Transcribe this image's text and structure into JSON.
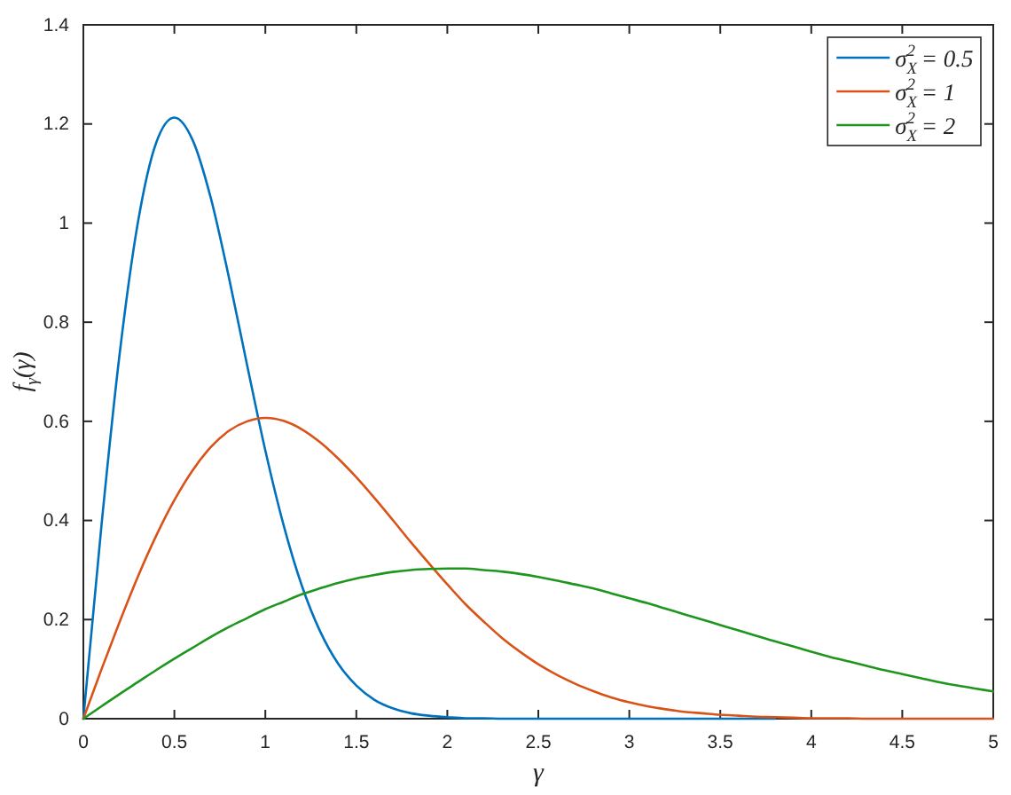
{
  "chart_data": {
    "type": "line",
    "xlabel": "γ",
    "ylabel": "f$_{γ}$(γ)",
    "xlim": [
      0,
      5
    ],
    "ylim": [
      0,
      1.4
    ],
    "xticks": [
      0,
      0.5,
      1,
      1.5,
      2,
      2.5,
      3,
      3.5,
      4,
      4.5,
      5
    ],
    "yticks": [
      0,
      0.2,
      0.4,
      0.6,
      0.8,
      1,
      1.2,
      1.4
    ],
    "legend": "top right",
    "x": [
      0,
      0.1,
      0.2,
      0.3,
      0.4,
      0.5,
      0.6,
      0.7,
      0.8,
      0.9,
      1,
      1.1,
      1.2,
      1.3,
      1.4,
      1.5,
      1.6,
      1.7,
      1.8,
      1.9,
      2,
      2.1,
      2.2,
      2.3,
      2.4,
      2.5,
      2.6,
      2.7,
      2.8,
      2.9,
      3,
      3.1,
      3.2,
      3.3,
      3.4,
      3.5,
      3.6,
      3.7,
      3.8,
      3.9,
      4,
      4.1,
      4.2,
      4.3,
      4.4,
      4.5,
      4.6,
      4.7,
      4.8,
      4.9,
      5
    ],
    "series": [
      {
        "name": "σ$_{X}$$^{2}$ = 0.5",
        "color": "#0072bd",
        "values": [
          0,
          0.392,
          0.738,
          1.002,
          1.162,
          1.213,
          1.168,
          1.051,
          0.89,
          0.713,
          0.541,
          0.391,
          0.269,
          0.177,
          0.111,
          0.067,
          0.038,
          0.021,
          0.011,
          0.006,
          0.003,
          0.001,
          0.001,
          0,
          0,
          0,
          0,
          0,
          0,
          0,
          0,
          0,
          0,
          0,
          0,
          0,
          0,
          0,
          0,
          null,
          null,
          null,
          null,
          null,
          null,
          null,
          null,
          null,
          null,
          null,
          null
        ]
      },
      {
        "name": "σ$_{X}$$^{2}$ = 1",
        "color": "#d95319",
        "values": [
          0,
          0.1,
          0.196,
          0.287,
          0.369,
          0.441,
          0.501,
          0.548,
          0.581,
          0.6,
          0.607,
          0.601,
          0.584,
          0.558,
          0.525,
          0.487,
          0.445,
          0.401,
          0.356,
          0.313,
          0.271,
          0.231,
          0.196,
          0.163,
          0.135,
          0.11,
          0.089,
          0.071,
          0.056,
          0.043,
          0.033,
          0.025,
          0.019,
          0.014,
          0.011,
          0.008,
          0.006,
          0.004,
          0.003,
          0.002,
          0.001,
          0.001,
          0.001,
          0,
          0,
          0,
          0,
          0,
          0,
          0,
          0
        ]
      },
      {
        "name": "σ$_{X}$$^{2}$ = 2",
        "color": "#1e961e",
        "values": [
          0,
          0.025,
          0.05,
          0.074,
          0.098,
          0.121,
          0.143,
          0.165,
          0.185,
          0.203,
          0.221,
          0.236,
          0.251,
          0.263,
          0.274,
          0.283,
          0.29,
          0.296,
          0.3,
          0.302,
          0.303,
          0.303,
          0.3,
          0.297,
          0.292,
          0.286,
          0.279,
          0.271,
          0.263,
          0.253,
          0.243,
          0.233,
          0.222,
          0.211,
          0.2,
          0.189,
          0.178,
          0.167,
          0.156,
          0.146,
          0.135,
          0.125,
          0.116,
          0.107,
          0.098,
          0.09,
          0.082,
          0.074,
          0.067,
          0.061,
          0.055
        ]
      }
    ]
  }
}
